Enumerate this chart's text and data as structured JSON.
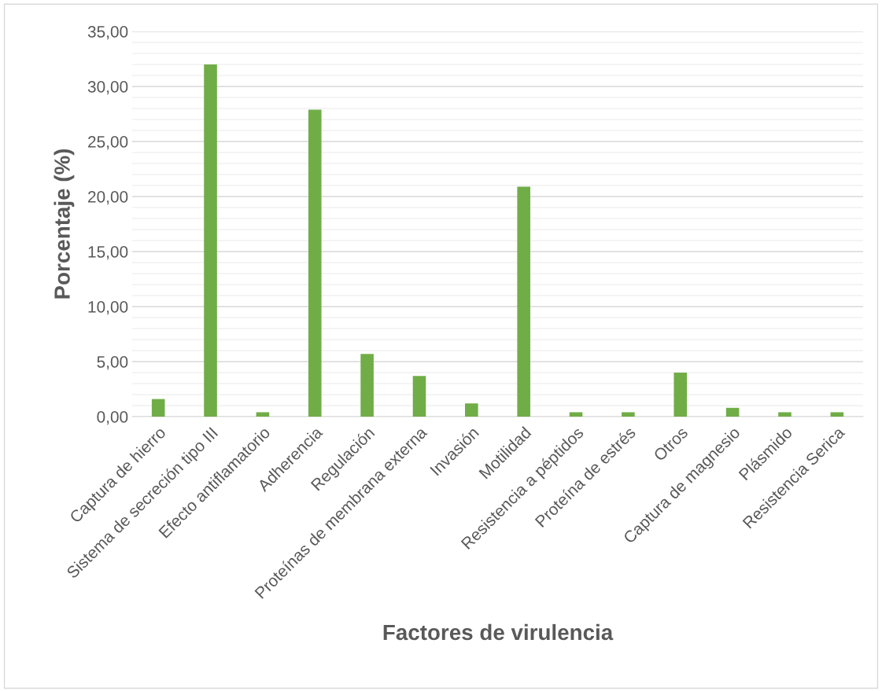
{
  "chart_data": {
    "type": "bar",
    "xlabel": "Factores de virulencia",
    "ylabel": "Porcentaje (%)",
    "categories": [
      "Captura de hierro",
      "Sistema de secreción tipo III",
      "Efecto antiflamatorio",
      "Adherencia",
      "Regulación",
      "Proteínas de membrana externa",
      "Invasión",
      "Motilidad",
      "Resistencia a péptidos",
      "Proteína de estrés",
      "Otros",
      "Captura de magnesio",
      "Plásmido",
      "Resistencia Serica"
    ],
    "values": [
      1.6,
      32.0,
      0.4,
      27.9,
      5.7,
      3.7,
      1.2,
      20.9,
      0.4,
      0.4,
      4.0,
      0.8,
      0.4,
      0.4
    ],
    "color": "#70ad47",
    "ylim": [
      0,
      35
    ],
    "yticks": [
      {
        "value": 0,
        "label": "0,00"
      },
      {
        "value": 1,
        "label": null
      },
      {
        "value": 2,
        "label": null
      },
      {
        "value": 3,
        "label": null
      },
      {
        "value": 4,
        "label": null
      },
      {
        "value": 5,
        "label": "5,00"
      },
      {
        "value": 6,
        "label": null
      },
      {
        "value": 7,
        "label": null
      },
      {
        "value": 8,
        "label": null
      },
      {
        "value": 9,
        "label": null
      },
      {
        "value": 10,
        "label": "10,00"
      },
      {
        "value": 11,
        "label": null
      },
      {
        "value": 12,
        "label": null
      },
      {
        "value": 13,
        "label": null
      },
      {
        "value": 14,
        "label": null
      },
      {
        "value": 15,
        "label": "15,00"
      },
      {
        "value": 16,
        "label": null
      },
      {
        "value": 17,
        "label": null
      },
      {
        "value": 18,
        "label": null
      },
      {
        "value": 19,
        "label": null
      },
      {
        "value": 20,
        "label": "20,00"
      },
      {
        "value": 21,
        "label": null
      },
      {
        "value": 22,
        "label": null
      },
      {
        "value": 23,
        "label": null
      },
      {
        "value": 24,
        "label": null
      },
      {
        "value": 25,
        "label": "25,00"
      },
      {
        "value": 26,
        "label": null
      },
      {
        "value": 27,
        "label": null
      },
      {
        "value": 28,
        "label": null
      },
      {
        "value": 29,
        "label": null
      },
      {
        "value": 30,
        "label": "30,00"
      },
      {
        "value": 31,
        "label": null
      },
      {
        "value": 32,
        "label": null
      },
      {
        "value": 33,
        "label": null
      },
      {
        "value": 34,
        "label": null
      },
      {
        "value": 35,
        "label": "35,00"
      }
    ],
    "grid": "y"
  }
}
